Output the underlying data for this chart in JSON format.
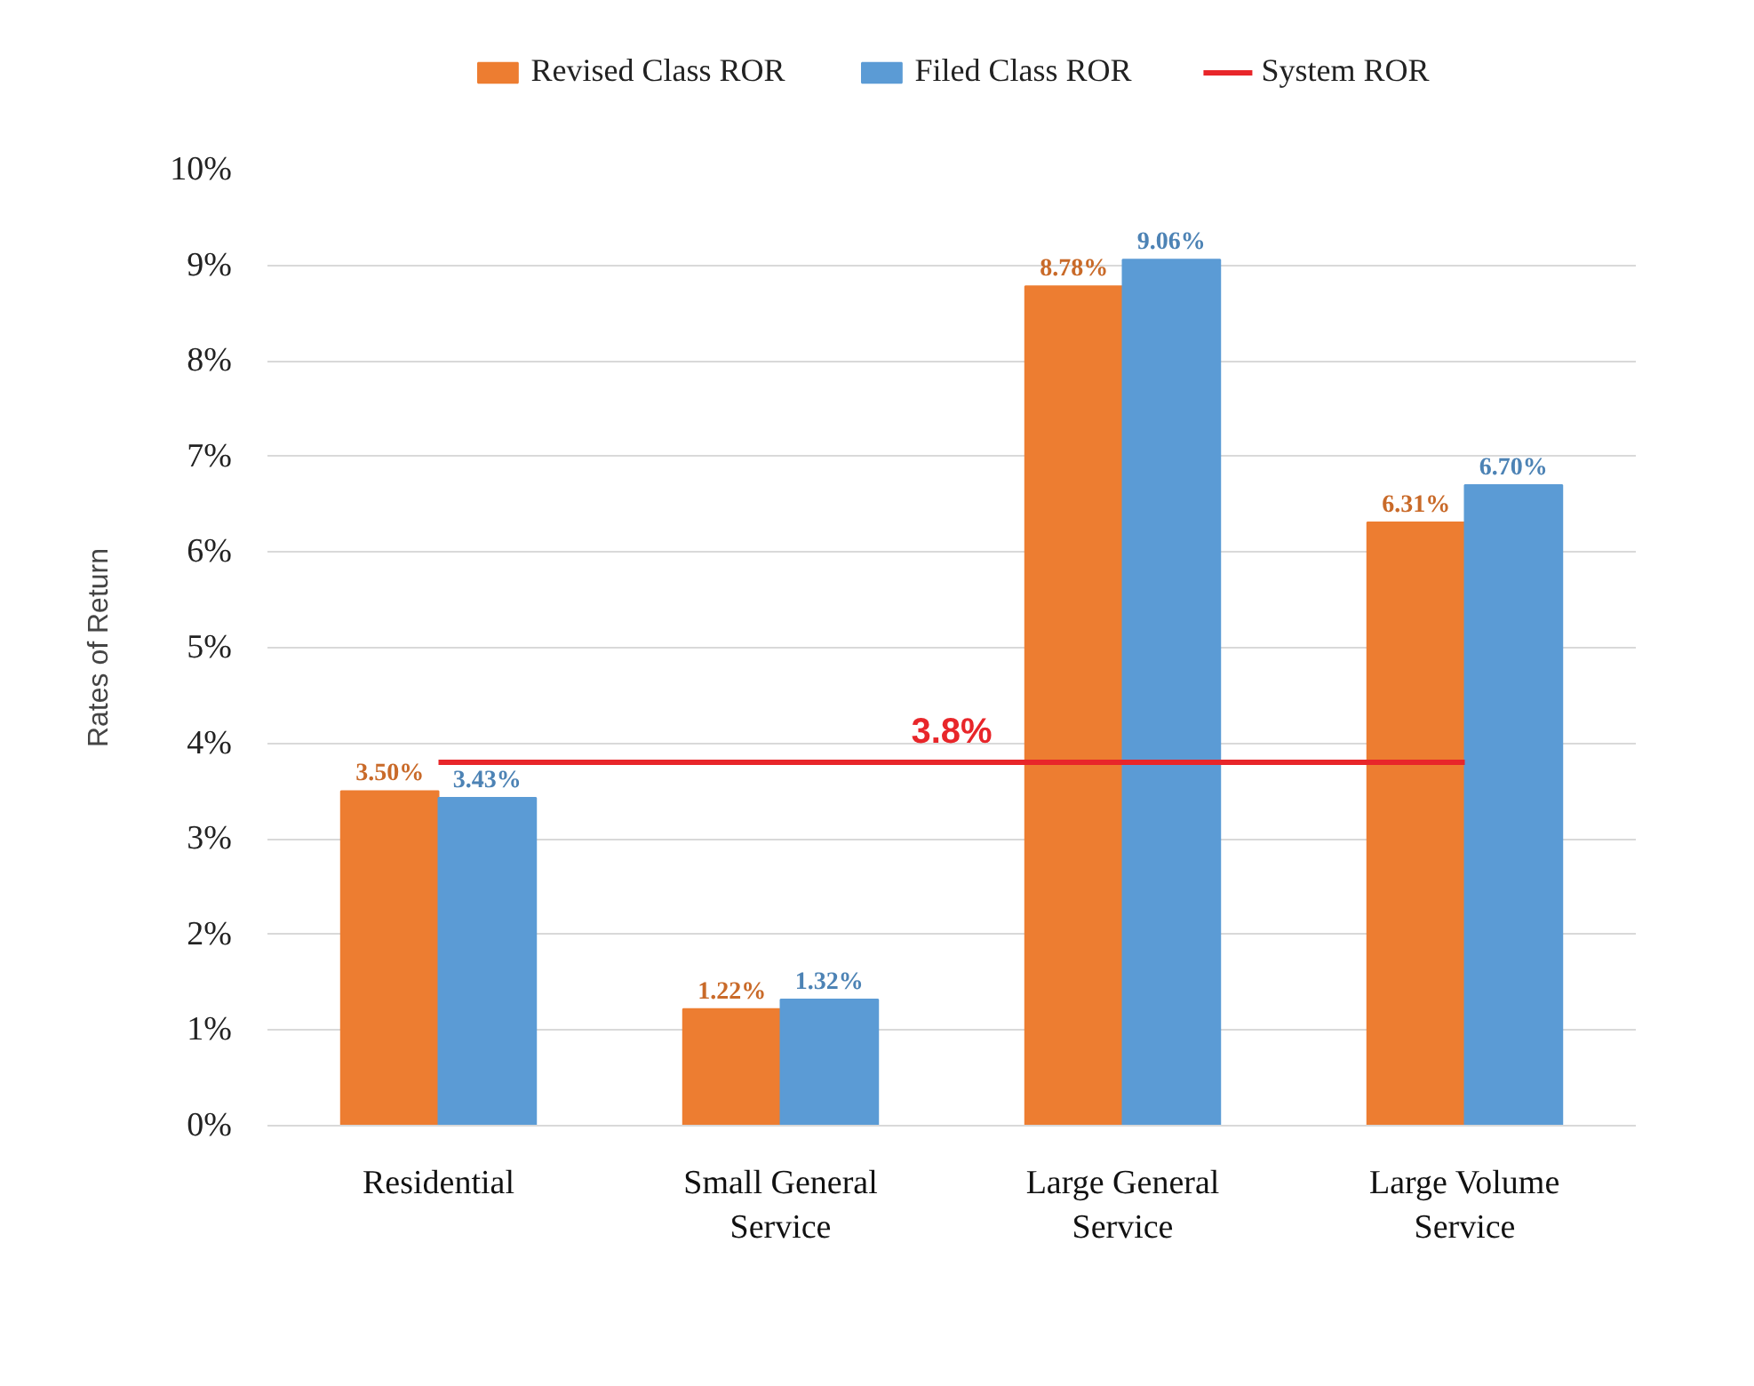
{
  "chart_data": {
    "type": "bar",
    "ylabel": "Rates of Return",
    "categories": [
      "Residential",
      "Small General Service",
      "Large General Service",
      "Large Volume Service"
    ],
    "ylim": [
      0,
      10
    ],
    "yticks": [
      {
        "value": 0,
        "label": "0%"
      },
      {
        "value": 1,
        "label": "1%"
      },
      {
        "value": 2,
        "label": "2%"
      },
      {
        "value": 3,
        "label": "3%"
      },
      {
        "value": 4,
        "label": "4%"
      },
      {
        "value": 5,
        "label": "5%"
      },
      {
        "value": 6,
        "label": "6%"
      },
      {
        "value": 7,
        "label": "7%"
      },
      {
        "value": 8,
        "label": "8%"
      },
      {
        "value": 9,
        "label": "9%"
      },
      {
        "value": 10,
        "label": "10%"
      }
    ],
    "grid": "y",
    "legend": "top",
    "series": [
      {
        "name": "Revised Class ROR",
        "color": "#ed7d31",
        "values": [
          3.5,
          1.22,
          8.78,
          6.31
        ],
        "value_labels": [
          "3.50%",
          "1.22%",
          "8.78%",
          "6.31%"
        ]
      },
      {
        "name": "Filed Class ROR",
        "color": "#5b9bd5",
        "values": [
          3.43,
          1.32,
          9.06,
          6.7
        ],
        "value_labels": [
          "3.43%",
          "1.32%",
          "9.06%",
          "6.70%"
        ]
      },
      {
        "name": "System ROR",
        "type": "line",
        "color": "#e8262a",
        "values": [
          3.8,
          3.8,
          3.8,
          3.8
        ]
      }
    ],
    "annotations": [
      {
        "text": "3.8%",
        "y": 3.8
      }
    ]
  }
}
